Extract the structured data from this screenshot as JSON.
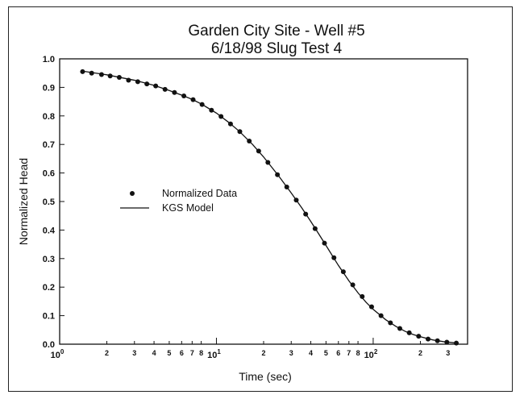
{
  "chart_data": {
    "type": "scatter",
    "title": [
      "Garden City Site - Well #5",
      "6/18/98 Slug Test 4"
    ],
    "xlabel": "Time (sec)",
    "ylabel": "Normalized Head",
    "xscale": "log",
    "xlim": [
      1,
      400
    ],
    "ylim": [
      0,
      1.0
    ],
    "y_ticks": [
      "0.0",
      "0.1",
      "0.2",
      "0.3",
      "0.4",
      "0.5",
      "0.6",
      "0.7",
      "0.8",
      "0.9",
      "1.0"
    ],
    "x_major_ticks": [
      {
        "value": 1,
        "base": "10",
        "exp": "0"
      },
      {
        "value": 10,
        "base": "10",
        "exp": "1"
      },
      {
        "value": 100,
        "base": "10",
        "exp": "2"
      }
    ],
    "x_minor_ticks": [
      {
        "value": 2,
        "label": "2"
      },
      {
        "value": 3,
        "label": "3"
      },
      {
        "value": 4,
        "label": "4"
      },
      {
        "value": 5,
        "label": "5"
      },
      {
        "value": 6,
        "label": "6"
      },
      {
        "value": 7,
        "label": "7"
      },
      {
        "value": 8,
        "label": "8"
      },
      {
        "value": 20,
        "label": "2"
      },
      {
        "value": 30,
        "label": "3"
      },
      {
        "value": 40,
        "label": "4"
      },
      {
        "value": 50,
        "label": "5"
      },
      {
        "value": 60,
        "label": "6"
      },
      {
        "value": 70,
        "label": "7"
      },
      {
        "value": 80,
        "label": "8"
      },
      {
        "value": 200,
        "label": "2"
      },
      {
        "value": 300,
        "label": "3"
      }
    ],
    "grid": false,
    "legend_position": "center-left",
    "series": [
      {
        "name": "Normalized Data",
        "type": "scatter",
        "points": [
          [
            1.4,
            0.955
          ],
          [
            1.6,
            0.95
          ],
          [
            1.85,
            0.945
          ],
          [
            2.1,
            0.94
          ],
          [
            2.4,
            0.935
          ],
          [
            2.75,
            0.925
          ],
          [
            3.15,
            0.92
          ],
          [
            3.6,
            0.912
          ],
          [
            4.1,
            0.905
          ],
          [
            4.7,
            0.893
          ],
          [
            5.4,
            0.882
          ],
          [
            6.2,
            0.87
          ],
          [
            7.1,
            0.857
          ],
          [
            8.1,
            0.84
          ],
          [
            9.3,
            0.82
          ],
          [
            10.7,
            0.798
          ],
          [
            12.3,
            0.772
          ],
          [
            14.1,
            0.745
          ],
          [
            16.2,
            0.712
          ],
          [
            18.6,
            0.677
          ],
          [
            21.3,
            0.637
          ],
          [
            24.5,
            0.594
          ],
          [
            28.1,
            0.551
          ],
          [
            32.3,
            0.505
          ],
          [
            37.1,
            0.456
          ],
          [
            42.6,
            0.405
          ],
          [
            48.9,
            0.354
          ],
          [
            56.2,
            0.303
          ],
          [
            64.5,
            0.254
          ],
          [
            74.1,
            0.208
          ],
          [
            85.1,
            0.167
          ],
          [
            97.7,
            0.131
          ],
          [
            112.2,
            0.1
          ],
          [
            128.8,
            0.075
          ],
          [
            147.9,
            0.055
          ],
          [
            169.8,
            0.04
          ],
          [
            195,
            0.028
          ],
          [
            224,
            0.018
          ],
          [
            257,
            0.012
          ],
          [
            295,
            0.007
          ],
          [
            339,
            0.004
          ]
        ]
      },
      {
        "name": "KGS Model",
        "type": "line",
        "points": [
          [
            1.4,
            0.957
          ],
          [
            2,
            0.944
          ],
          [
            3,
            0.925
          ],
          [
            4,
            0.907
          ],
          [
            5,
            0.889
          ],
          [
            6,
            0.873
          ],
          [
            7,
            0.858
          ],
          [
            8,
            0.842
          ],
          [
            10,
            0.81
          ],
          [
            12,
            0.777
          ],
          [
            14,
            0.746
          ],
          [
            17,
            0.7
          ],
          [
            20,
            0.656
          ],
          [
            25,
            0.589
          ],
          [
            30,
            0.53
          ],
          [
            35,
            0.478
          ],
          [
            40,
            0.43
          ],
          [
            45,
            0.386
          ],
          [
            50,
            0.346
          ],
          [
            60,
            0.276
          ],
          [
            70,
            0.222
          ],
          [
            80,
            0.18
          ],
          [
            90,
            0.147
          ],
          [
            100,
            0.122
          ],
          [
            120,
            0.086
          ],
          [
            140,
            0.062
          ],
          [
            160,
            0.045
          ],
          [
            180,
            0.034
          ],
          [
            200,
            0.026
          ],
          [
            240,
            0.015
          ],
          [
            280,
            0.009
          ],
          [
            340,
            0.004
          ]
        ]
      }
    ]
  }
}
